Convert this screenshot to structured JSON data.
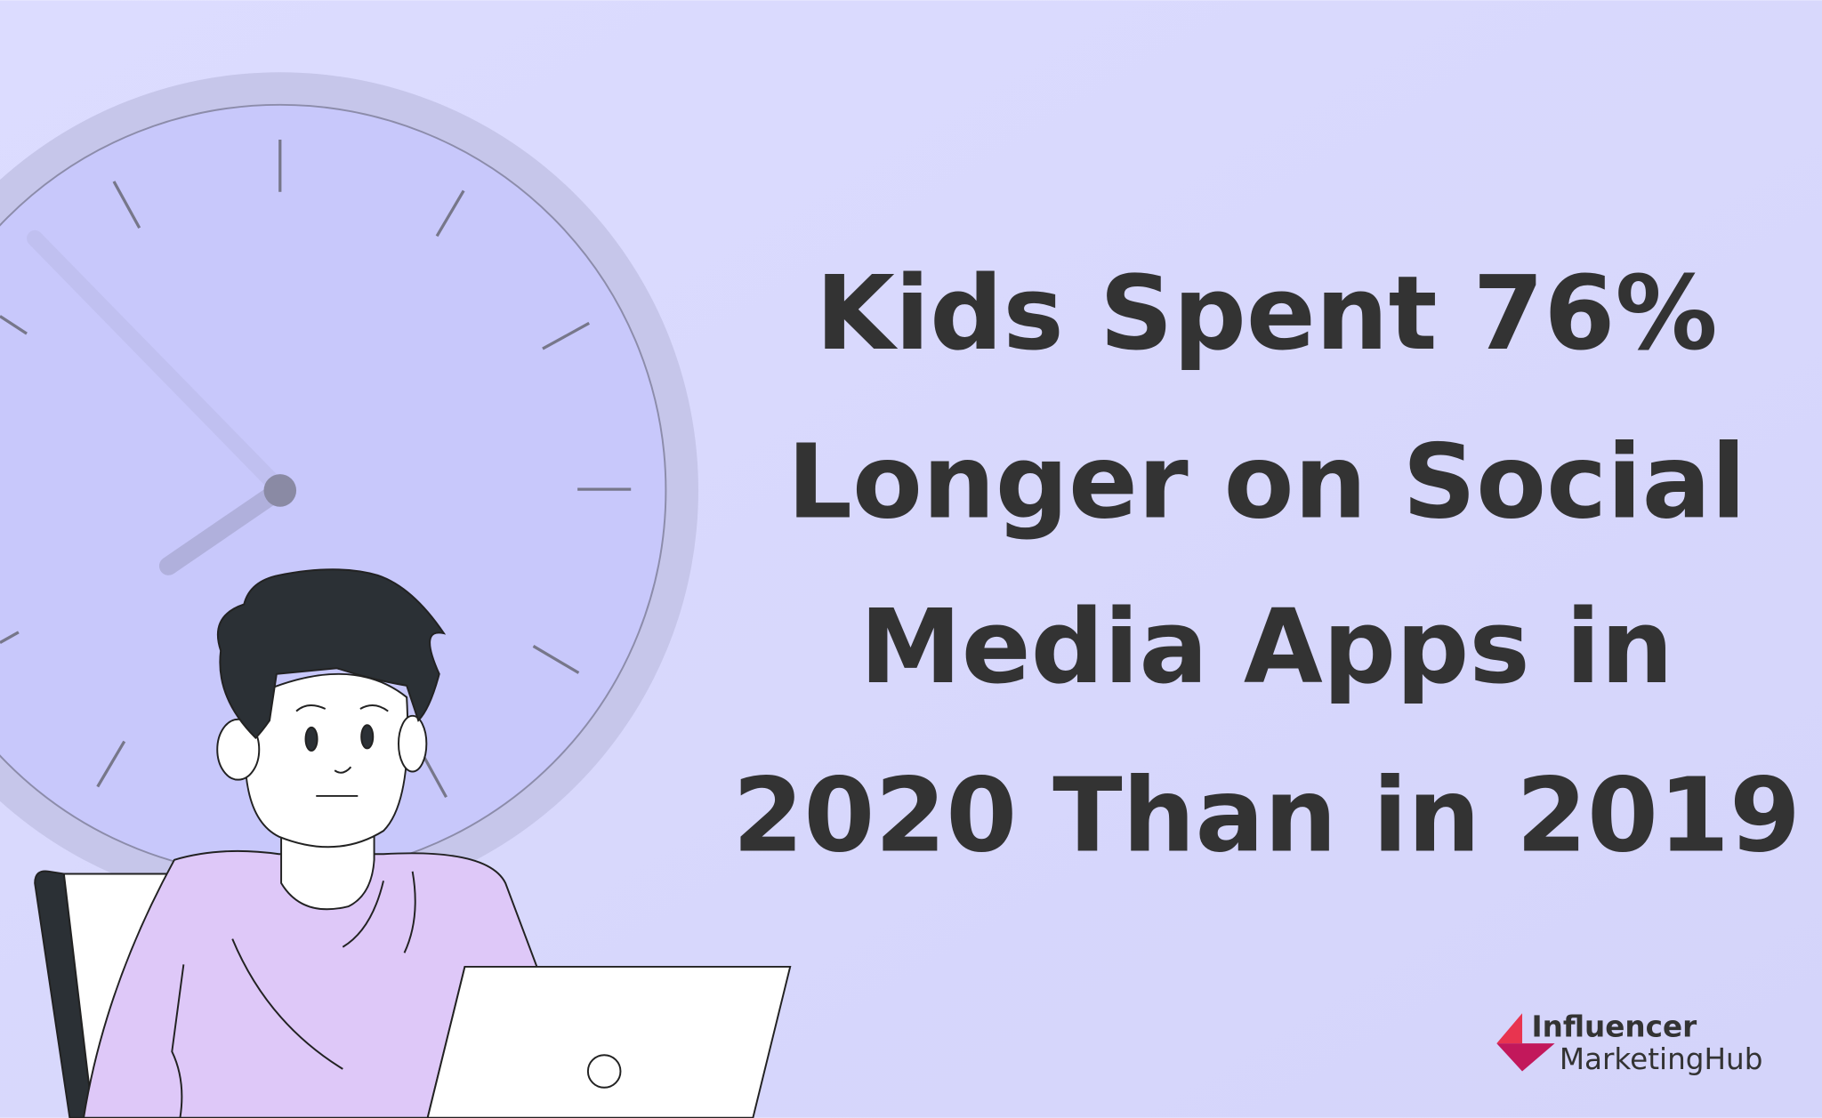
{
  "headline": {
    "lines": [
      "Kids Spent 76%",
      "Longer on Social",
      "Media Apps in",
      "2020 Than in 2019"
    ]
  },
  "logo": {
    "line1": "Influencer",
    "line2": "MarketingHub"
  }
}
